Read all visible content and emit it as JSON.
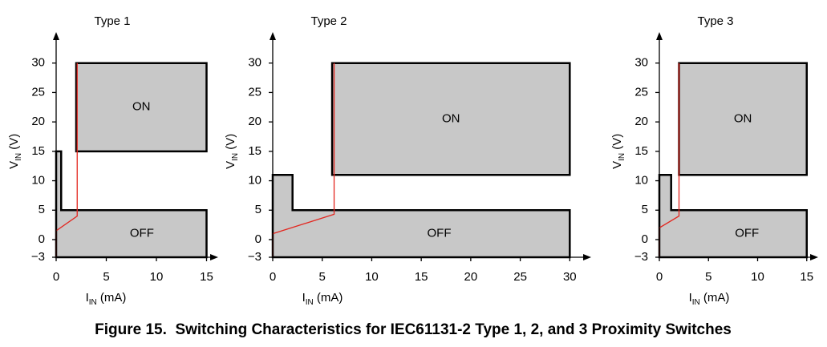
{
  "chart_data": [
    {
      "type": "region",
      "title": "Type 1",
      "xlabel": [
        "I",
        "IN",
        " (mA)"
      ],
      "ylabel": [
        "V",
        "IN",
        " (V)"
      ],
      "xlim": [
        0,
        16
      ],
      "ylim": [
        -3,
        35
      ],
      "xticks": [
        0,
        5,
        10,
        15
      ],
      "yticks": [
        {
          "value": -3,
          "label": "−3"
        },
        0,
        5,
        10,
        15,
        20,
        25,
        30
      ],
      "region_color": "#c8c8c8",
      "regions": [
        {
          "name": "ON",
          "x": [
            2,
            15,
            15,
            2
          ],
          "y": [
            15,
            15,
            30,
            30
          ]
        },
        {
          "name": "OFF",
          "x": [
            0,
            0,
            0.5,
            0.5,
            15,
            15
          ],
          "y": [
            -3,
            15,
            15,
            5,
            5,
            -3
          ]
        }
      ],
      "lines": [
        {
          "color": "#e3261f",
          "x": [
            0,
            0,
            2.1,
            2.1
          ],
          "y": [
            -3,
            1.5,
            4,
            30
          ]
        }
      ]
    },
    {
      "type": "region",
      "title": "Type 2",
      "xlabel": [
        "I",
        "IN",
        " (mA)"
      ],
      "ylabel": [
        "V",
        "IN",
        " (V)"
      ],
      "xlim": [
        0,
        32
      ],
      "ylim": [
        -3,
        35
      ],
      "xticks": [
        0,
        5,
        10,
        15,
        20,
        25,
        30
      ],
      "yticks": [
        {
          "value": -3,
          "label": "−3"
        },
        0,
        5,
        10,
        15,
        20,
        25,
        30
      ],
      "region_color": "#c8c8c8",
      "regions": [
        {
          "name": "ON",
          "x": [
            6,
            30,
            30,
            6
          ],
          "y": [
            11,
            11,
            30,
            30
          ]
        },
        {
          "name": "OFF",
          "x": [
            0,
            0,
            2,
            2,
            30,
            30
          ],
          "y": [
            -3,
            11,
            11,
            5,
            5,
            -3
          ]
        }
      ],
      "lines": [
        {
          "color": "#e3261f",
          "x": [
            0,
            0,
            6.2,
            6.2
          ],
          "y": [
            -3,
            1,
            4.3,
            30
          ]
        }
      ]
    },
    {
      "type": "region",
      "title": "Type 3",
      "xlabel": [
        "I",
        "IN",
        " (mA)"
      ],
      "ylabel": [
        "V",
        "IN",
        " (V)"
      ],
      "xlim": [
        0,
        16
      ],
      "ylim": [
        -3,
        35
      ],
      "xticks": [
        0,
        5,
        10,
        15
      ],
      "yticks": [
        {
          "value": -3,
          "label": "−3"
        },
        0,
        5,
        10,
        15,
        20,
        25,
        30
      ],
      "region_color": "#c8c8c8",
      "regions": [
        {
          "name": "ON",
          "x": [
            2,
            15,
            15,
            2
          ],
          "y": [
            11,
            11,
            30,
            30
          ]
        },
        {
          "name": "OFF",
          "x": [
            0,
            0,
            1.2,
            1.2,
            15,
            15
          ],
          "y": [
            -3,
            11,
            11,
            5,
            5,
            -3
          ]
        }
      ],
      "lines": [
        {
          "color": "#e3261f",
          "x": [
            0,
            0,
            2,
            2
          ],
          "y": [
            -3,
            2,
            4,
            30
          ]
        }
      ]
    }
  ],
  "caption": "Figure 15.  Switching Characteristics for IEC61131-2 Type 1, 2, and 3 Proximity Switches"
}
